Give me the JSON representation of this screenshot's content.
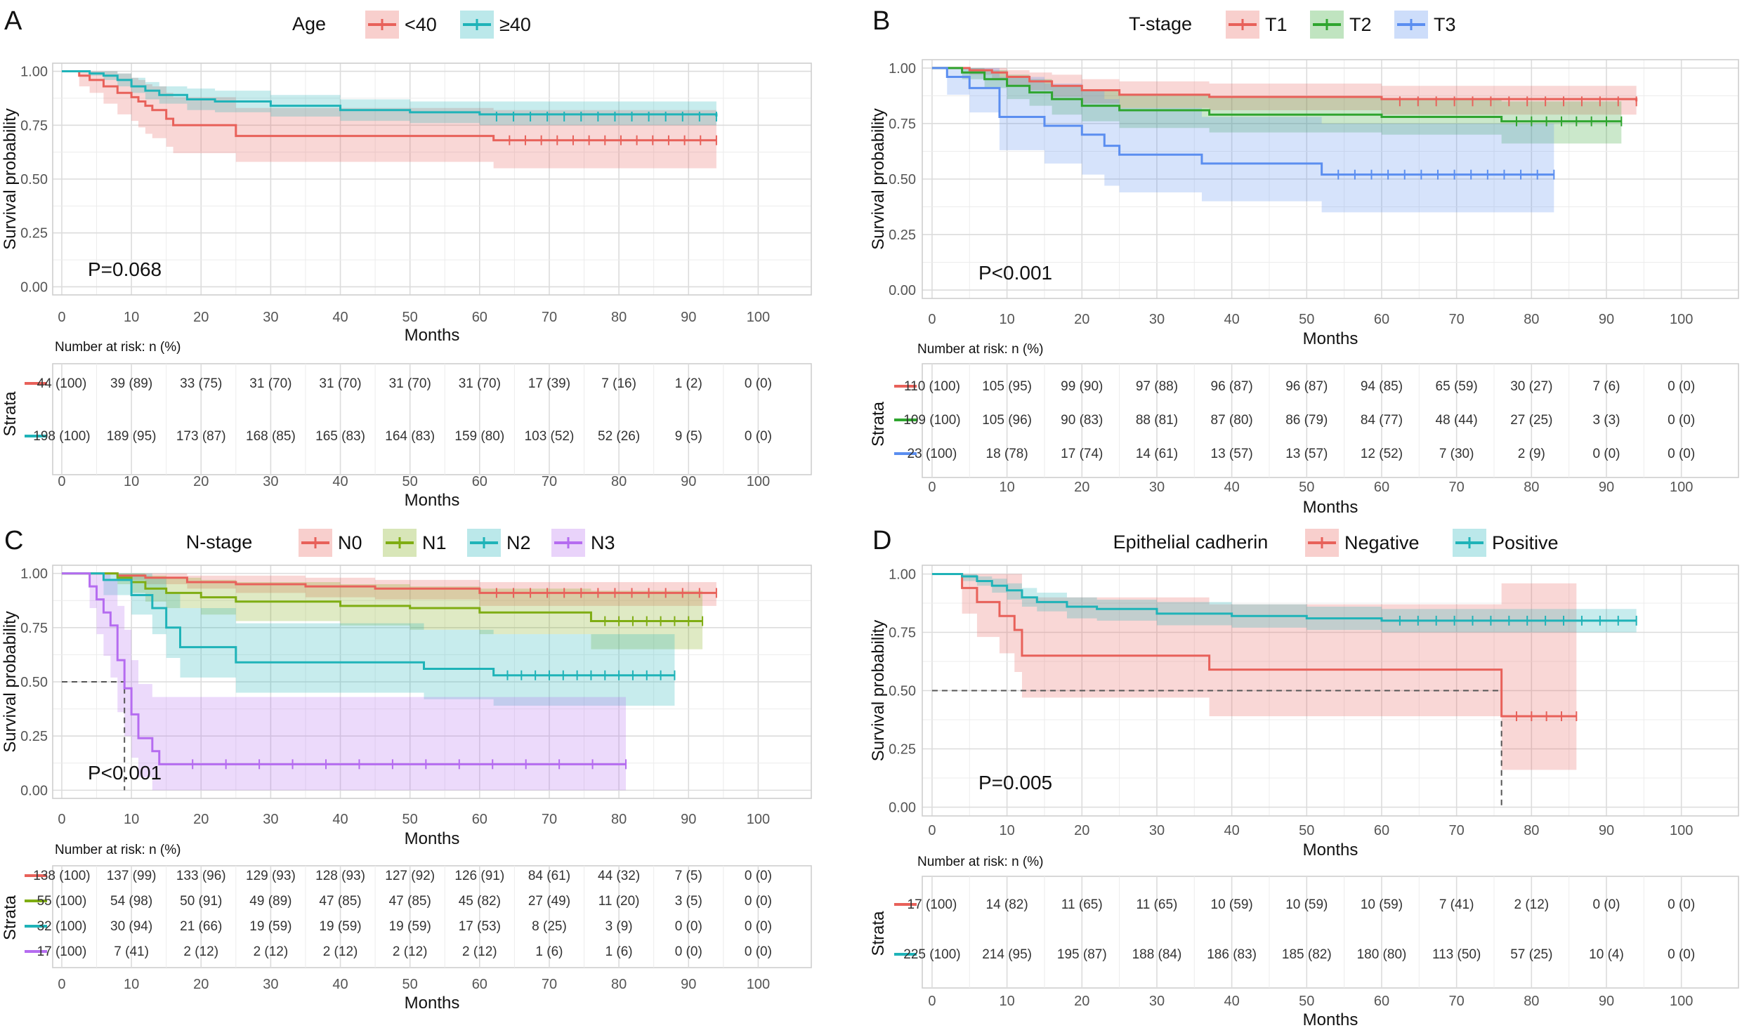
{
  "chart_data": [
    {
      "type": "line",
      "panel": "A",
      "legend_title": "Age",
      "legend_placement": "top",
      "xlabel": "Months",
      "ylabel": "Survival probability",
      "xlim": [
        0,
        100
      ],
      "ylim": [
        0,
        1
      ],
      "x_ticks": [
        "0",
        "10",
        "20",
        "30",
        "40",
        "50",
        "60",
        "70",
        "80",
        "90",
        "100"
      ],
      "y_ticks": [
        "0.00",
        "0.25",
        "0.50",
        "0.75",
        "1.00"
      ],
      "grid": true,
      "annotation": "P=0.068",
      "risk_table_title": "Number at risk: n (%)",
      "risk_table_ylabel": "Strata",
      "risk_table_xlabel": "Months",
      "series": [
        {
          "name": "<40",
          "color": "#e8615a",
          "x": [
            0,
            2.5,
            4,
            6,
            8,
            10,
            11,
            12,
            13,
            15,
            16,
            25,
            61,
            62,
            94
          ],
          "y": [
            1.0,
            0.98,
            0.96,
            0.93,
            0.9,
            0.88,
            0.86,
            0.84,
            0.82,
            0.78,
            0.75,
            0.7,
            0.7,
            0.68,
            0.68
          ],
          "ci_upper": [
            1.0,
            1.0,
            1.0,
            1.0,
            0.99,
            0.97,
            0.96,
            0.94,
            0.93,
            0.9,
            0.88,
            0.83,
            0.83,
            0.82,
            0.82
          ],
          "ci_lower": [
            1.0,
            0.93,
            0.9,
            0.85,
            0.8,
            0.77,
            0.74,
            0.71,
            0.69,
            0.65,
            0.62,
            0.58,
            0.58,
            0.55,
            0.55
          ],
          "risk": [
            "44 (100)",
            "39 (89)",
            "33 (75)",
            "31 (70)",
            "31 (70)",
            "31 (70)",
            "31 (70)",
            "17 (39)",
            "7 (16)",
            "1 (2)",
            "0 (0)"
          ]
        },
        {
          "name": "≥40",
          "color": "#1fb3b8",
          "x": [
            0,
            4,
            6,
            8,
            10,
            12,
            14,
            18,
            22,
            30,
            40,
            50,
            60,
            94
          ],
          "y": [
            1.0,
            0.99,
            0.98,
            0.96,
            0.93,
            0.91,
            0.89,
            0.87,
            0.86,
            0.84,
            0.82,
            0.81,
            0.8,
            0.79
          ],
          "ci_upper": [
            1.0,
            1.0,
            1.0,
            0.99,
            0.97,
            0.95,
            0.93,
            0.92,
            0.91,
            0.89,
            0.87,
            0.86,
            0.86,
            0.85
          ],
          "ci_lower": [
            1.0,
            0.98,
            0.96,
            0.93,
            0.9,
            0.87,
            0.85,
            0.82,
            0.81,
            0.79,
            0.77,
            0.76,
            0.75,
            0.73
          ],
          "risk": [
            "198 (100)",
            "189 (95)",
            "173 (87)",
            "168 (85)",
            "165 (83)",
            "164 (83)",
            "159 (80)",
            "103 (52)",
            "52 (26)",
            "9 (5)",
            "0 (0)"
          ]
        }
      ]
    },
    {
      "type": "line",
      "panel": "B",
      "legend_title": "T-stage",
      "legend_placement": "top",
      "xlabel": "Months",
      "ylabel": "Survival probability",
      "xlim": [
        0,
        100
      ],
      "ylim": [
        0,
        1
      ],
      "x_ticks": [
        "0",
        "10",
        "20",
        "30",
        "40",
        "50",
        "60",
        "70",
        "80",
        "90",
        "100"
      ],
      "y_ticks": [
        "0.00",
        "0.25",
        "0.50",
        "0.75",
        "1.00"
      ],
      "grid": true,
      "annotation": "P<0.001",
      "risk_table_title": "Number at risk: n (%)",
      "risk_table_ylabel": "Strata",
      "risk_table_xlabel": "Months",
      "series": [
        {
          "name": "T1",
          "color": "#e8615a",
          "x": [
            0,
            5,
            8,
            10,
            13,
            16,
            20,
            25,
            37,
            60,
            94
          ],
          "y": [
            1.0,
            0.99,
            0.98,
            0.96,
            0.94,
            0.92,
            0.9,
            0.88,
            0.87,
            0.86,
            0.85
          ],
          "ci_upper": [
            1.0,
            1.0,
            1.0,
            0.99,
            0.98,
            0.97,
            0.95,
            0.94,
            0.93,
            0.92,
            0.92
          ],
          "ci_lower": [
            1.0,
            0.97,
            0.95,
            0.92,
            0.9,
            0.87,
            0.84,
            0.82,
            0.81,
            0.79,
            0.78
          ],
          "risk": [
            "110 (100)",
            "105 (95)",
            "99 (90)",
            "97 (88)",
            "96 (87)",
            "96 (87)",
            "94 (85)",
            "65 (59)",
            "30 (27)",
            "7 (6)",
            "0 (0)"
          ]
        },
        {
          "name": "T2",
          "color": "#2fa52f",
          "x": [
            0,
            4,
            7,
            10,
            13,
            16,
            20,
            25,
            37,
            60,
            76,
            92
          ],
          "y": [
            1.0,
            0.98,
            0.95,
            0.92,
            0.89,
            0.86,
            0.83,
            0.81,
            0.79,
            0.78,
            0.76,
            0.76
          ],
          "ci_upper": [
            1.0,
            1.0,
            0.99,
            0.97,
            0.95,
            0.92,
            0.9,
            0.88,
            0.87,
            0.86,
            0.85,
            0.85
          ],
          "ci_lower": [
            1.0,
            0.95,
            0.91,
            0.86,
            0.83,
            0.79,
            0.76,
            0.73,
            0.71,
            0.7,
            0.66,
            0.66
          ],
          "risk": [
            "109 (100)",
            "105 (96)",
            "90 (83)",
            "88 (81)",
            "87 (80)",
            "86 (79)",
            "84 (77)",
            "48 (44)",
            "27 (25)",
            "3 (3)",
            "0 (0)"
          ]
        },
        {
          "name": "T3",
          "color": "#5b8ef0",
          "x": [
            0,
            2,
            5,
            9,
            15,
            20,
            23,
            25,
            36,
            37,
            52,
            83
          ],
          "y": [
            1.0,
            0.96,
            0.91,
            0.78,
            0.74,
            0.7,
            0.65,
            0.61,
            0.57,
            0.57,
            0.52,
            0.52
          ],
          "ci_upper": [
            1.0,
            1.0,
            1.0,
            0.96,
            0.93,
            0.9,
            0.86,
            0.82,
            0.78,
            0.78,
            0.75,
            0.75
          ],
          "ci_lower": [
            1.0,
            0.88,
            0.8,
            0.63,
            0.57,
            0.52,
            0.47,
            0.44,
            0.4,
            0.4,
            0.35,
            0.35
          ],
          "risk": [
            "23 (100)",
            "18 (78)",
            "17 (74)",
            "14 (61)",
            "13 (57)",
            "13 (57)",
            "12 (52)",
            "7 (30)",
            "2 (9)",
            "0 (0)",
            "0 (0)"
          ]
        }
      ]
    },
    {
      "type": "line",
      "panel": "C",
      "legend_title": "N-stage",
      "legend_placement": "top",
      "xlabel": "Months",
      "ylabel": "Survival probability",
      "xlim": [
        0,
        100
      ],
      "ylim": [
        0,
        1
      ],
      "x_ticks": [
        "0",
        "10",
        "20",
        "30",
        "40",
        "50",
        "60",
        "70",
        "80",
        "90",
        "100"
      ],
      "y_ticks": [
        "0.00",
        "0.25",
        "0.50",
        "0.75",
        "1.00"
      ],
      "grid": true,
      "annotation": "P<0.001",
      "median_lines": [
        9
      ],
      "risk_table_title": "Number at risk: n (%)",
      "risk_table_ylabel": "Strata",
      "risk_table_xlabel": "Months",
      "series": [
        {
          "name": "N0",
          "color": "#e8615a",
          "x": [
            0,
            8,
            12,
            18,
            25,
            35,
            45,
            60,
            94
          ],
          "y": [
            1.0,
            0.99,
            0.98,
            0.96,
            0.95,
            0.94,
            0.93,
            0.91,
            0.91
          ],
          "ci_upper": [
            1.0,
            1.0,
            1.0,
            0.99,
            0.99,
            0.98,
            0.97,
            0.96,
            0.96
          ],
          "ci_lower": [
            1.0,
            0.97,
            0.95,
            0.93,
            0.91,
            0.89,
            0.88,
            0.85,
            0.85
          ],
          "risk": [
            "138 (100)",
            "137 (99)",
            "133 (96)",
            "129 (93)",
            "128 (93)",
            "127 (92)",
            "126 (91)",
            "84 (61)",
            "44 (32)",
            "7 (5)",
            "0 (0)"
          ]
        },
        {
          "name": "N1",
          "color": "#7fad13",
          "x": [
            0,
            8,
            10,
            12,
            15,
            20,
            25,
            40,
            50,
            60,
            75,
            76,
            92
          ],
          "y": [
            1.0,
            0.98,
            0.96,
            0.93,
            0.91,
            0.89,
            0.87,
            0.85,
            0.84,
            0.82,
            0.82,
            0.78,
            0.78
          ],
          "ci_upper": [
            1.0,
            1.0,
            1.0,
            0.99,
            0.98,
            0.97,
            0.96,
            0.95,
            0.94,
            0.93,
            0.93,
            0.92,
            0.92
          ],
          "ci_lower": [
            1.0,
            0.95,
            0.91,
            0.87,
            0.84,
            0.81,
            0.78,
            0.76,
            0.74,
            0.72,
            0.72,
            0.65,
            0.65
          ],
          "risk": [
            "55 (100)",
            "54 (98)",
            "50 (91)",
            "49 (89)",
            "47 (85)",
            "47 (85)",
            "45 (82)",
            "27 (49)",
            "11 (20)",
            "3 (5)",
            "0 (0)"
          ]
        },
        {
          "name": "N2",
          "color": "#1fb3b8",
          "x": [
            0,
            6,
            10,
            13,
            15,
            17,
            25,
            52,
            62,
            88
          ],
          "y": [
            1.0,
            0.97,
            0.9,
            0.84,
            0.75,
            0.66,
            0.59,
            0.56,
            0.53,
            0.53
          ],
          "ci_upper": [
            1.0,
            1.0,
            1.0,
            0.98,
            0.91,
            0.84,
            0.77,
            0.74,
            0.72,
            0.72
          ],
          "ci_lower": [
            1.0,
            0.9,
            0.81,
            0.72,
            0.61,
            0.52,
            0.45,
            0.42,
            0.39,
            0.39
          ],
          "risk": [
            "32 (100)",
            "30 (94)",
            "21 (66)",
            "19 (59)",
            "19 (59)",
            "19 (59)",
            "17 (53)",
            "8 (25)",
            "3 (9)",
            "0 (0)",
            "0 (0)"
          ]
        },
        {
          "name": "N3",
          "color": "#b56cf0",
          "x": [
            0,
            4,
            5,
            6,
            7,
            8,
            9,
            10,
            11,
            13,
            14,
            81
          ],
          "y": [
            1.0,
            0.94,
            0.88,
            0.82,
            0.76,
            0.6,
            0.47,
            0.35,
            0.24,
            0.18,
            0.12,
            0.12
          ],
          "ci_upper": [
            1.0,
            1.0,
            1.0,
            1.0,
            0.97,
            0.85,
            0.74,
            0.6,
            0.49,
            0.43,
            0.43,
            0.43
          ],
          "ci_lower": [
            1.0,
            0.84,
            0.72,
            0.62,
            0.52,
            0.36,
            0.25,
            0.15,
            0.06,
            0.0,
            0.0,
            0.0
          ],
          "risk": [
            "17 (100)",
            "7 (41)",
            "2 (12)",
            "2 (12)",
            "2 (12)",
            "2 (12)",
            "2 (12)",
            "1 (6)",
            "1 (6)",
            "0 (0)",
            "0 (0)"
          ]
        }
      ]
    },
    {
      "type": "line",
      "panel": "D",
      "legend_title": "Epithelial cadherin",
      "legend_placement": "top",
      "xlabel": "Months",
      "ylabel": "Survival probability",
      "xlim": [
        0,
        100
      ],
      "ylim": [
        0,
        1
      ],
      "x_ticks": [
        "0",
        "10",
        "20",
        "30",
        "40",
        "50",
        "60",
        "70",
        "80",
        "90",
        "100"
      ],
      "y_ticks": [
        "0.00",
        "0.25",
        "0.50",
        "0.75",
        "1.00"
      ],
      "grid": true,
      "annotation": "P=0.005",
      "median_lines": [
        76
      ],
      "risk_table_title": "Number at risk: n (%)",
      "risk_table_ylabel": "Strata",
      "risk_table_xlabel": "Months",
      "series": [
        {
          "name": "Negative",
          "color": "#e8615a",
          "x": [
            0,
            4,
            6,
            9,
            11,
            12,
            37,
            75,
            76,
            86
          ],
          "y": [
            1.0,
            0.94,
            0.88,
            0.82,
            0.76,
            0.65,
            0.59,
            0.59,
            0.39,
            0.39
          ],
          "ci_upper": [
            1.0,
            1.0,
            1.0,
            1.0,
            1.0,
            0.9,
            0.87,
            0.87,
            0.96,
            0.96
          ],
          "ci_lower": [
            1.0,
            0.83,
            0.73,
            0.66,
            0.58,
            0.47,
            0.39,
            0.39,
            0.16,
            0.16
          ],
          "risk": [
            "17 (100)",
            "14 (82)",
            "11 (65)",
            "11 (65)",
            "10 (59)",
            "10 (59)",
            "10 (59)",
            "7 (41)",
            "2 (12)",
            "0 (0)",
            "0 (0)"
          ]
        },
        {
          "name": "Positive",
          "color": "#1fb3b8",
          "x": [
            0,
            4,
            6,
            8,
            10,
            12,
            14,
            18,
            22,
            30,
            40,
            50,
            60,
            94
          ],
          "y": [
            1.0,
            0.99,
            0.97,
            0.95,
            0.93,
            0.9,
            0.88,
            0.86,
            0.85,
            0.83,
            0.82,
            0.81,
            0.8,
            0.8
          ],
          "ci_upper": [
            1.0,
            1.0,
            0.99,
            0.98,
            0.96,
            0.94,
            0.92,
            0.9,
            0.89,
            0.88,
            0.87,
            0.86,
            0.85,
            0.85
          ],
          "ci_lower": [
            1.0,
            0.97,
            0.95,
            0.92,
            0.89,
            0.86,
            0.84,
            0.81,
            0.8,
            0.78,
            0.77,
            0.76,
            0.75,
            0.74
          ],
          "risk": [
            "225 (100)",
            "214 (95)",
            "195 (87)",
            "188 (84)",
            "186 (83)",
            "185 (82)",
            "180 (80)",
            "113 (50)",
            "57 (25)",
            "10 (4)",
            "0 (0)"
          ]
        }
      ]
    }
  ]
}
